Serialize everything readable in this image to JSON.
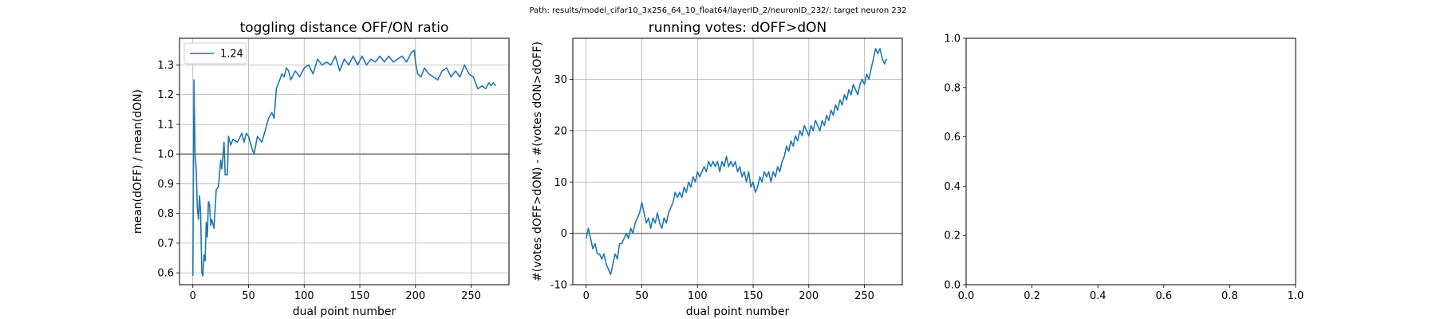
{
  "suptitle": "Path: results/model_cifar10_3x256_64_10_float64/layerID_2/neuronID_232/; target neuron 232",
  "chart_data": [
    {
      "type": "line",
      "title": "toggling distance OFF/ON ratio",
      "xlabel": "dual point number",
      "ylabel": "mean(dOFF) / mean(dON)",
      "xlim": [
        -12,
        284
      ],
      "ylim": [
        0.56,
        1.39
      ],
      "xticks": [
        0,
        50,
        100,
        150,
        200,
        250
      ],
      "yticks": [
        0.6,
        0.7,
        0.8,
        0.9,
        1.0,
        1.1,
        1.2,
        1.3
      ],
      "grid": true,
      "hline": 1.0,
      "legend": {
        "loc": "upper left",
        "entries": [
          "1.24"
        ]
      },
      "series": [
        {
          "name": "1.24",
          "keypoints": [
            [
              0,
              0.59
            ],
            [
              1,
              1.25
            ],
            [
              2,
              1.0
            ],
            [
              3,
              0.95
            ],
            [
              4,
              0.82
            ],
            [
              5,
              0.78
            ],
            [
              6,
              0.86
            ],
            [
              7,
              0.8
            ],
            [
              8,
              0.6
            ],
            [
              9,
              0.59
            ],
            [
              10,
              0.66
            ],
            [
              11,
              0.64
            ],
            [
              12,
              0.77
            ],
            [
              13,
              0.72
            ],
            [
              14,
              0.84
            ],
            [
              15,
              0.83
            ],
            [
              16,
              0.76
            ],
            [
              17,
              0.78
            ],
            [
              19,
              0.75
            ],
            [
              21,
              0.88
            ],
            [
              23,
              0.89
            ],
            [
              25,
              0.98
            ],
            [
              26,
              0.95
            ],
            [
              27,
              0.99
            ],
            [
              28,
              1.04
            ],
            [
              29,
              0.93
            ],
            [
              31,
              0.93
            ],
            [
              32,
              1.06
            ],
            [
              34,
              1.03
            ],
            [
              36,
              1.05
            ],
            [
              40,
              1.04
            ],
            [
              44,
              1.07
            ],
            [
              46,
              1.04
            ],
            [
              48,
              1.07
            ],
            [
              50,
              1.06
            ],
            [
              53,
              1.02
            ],
            [
              55,
              1.0
            ],
            [
              58,
              1.06
            ],
            [
              62,
              1.04
            ],
            [
              65,
              1.08
            ],
            [
              68,
              1.12
            ],
            [
              71,
              1.14
            ],
            [
              73,
              1.12
            ],
            [
              75,
              1.22
            ],
            [
              78,
              1.25
            ],
            [
              80,
              1.27
            ],
            [
              82,
              1.26
            ],
            [
              84,
              1.29
            ],
            [
              86,
              1.28
            ],
            [
              88,
              1.25
            ],
            [
              92,
              1.28
            ],
            [
              96,
              1.26
            ],
            [
              100,
              1.29
            ],
            [
              104,
              1.3
            ],
            [
              108,
              1.27
            ],
            [
              112,
              1.32
            ],
            [
              116,
              1.3
            ],
            [
              120,
              1.31
            ],
            [
              124,
              1.3
            ],
            [
              128,
              1.33
            ],
            [
              132,
              1.28
            ],
            [
              136,
              1.32
            ],
            [
              140,
              1.3
            ],
            [
              144,
              1.33
            ],
            [
              148,
              1.3
            ],
            [
              152,
              1.33
            ],
            [
              156,
              1.3
            ],
            [
              160,
              1.32
            ],
            [
              164,
              1.31
            ],
            [
              168,
              1.33
            ],
            [
              172,
              1.31
            ],
            [
              176,
              1.33
            ],
            [
              180,
              1.31
            ],
            [
              184,
              1.32
            ],
            [
              188,
              1.33
            ],
            [
              192,
              1.31
            ],
            [
              196,
              1.34
            ],
            [
              199,
              1.35
            ],
            [
              200,
              1.31
            ],
            [
              202,
              1.27
            ],
            [
              205,
              1.26
            ],
            [
              208,
              1.29
            ],
            [
              212,
              1.27
            ],
            [
              216,
              1.26
            ],
            [
              220,
              1.25
            ],
            [
              224,
              1.28
            ],
            [
              228,
              1.29
            ],
            [
              232,
              1.26
            ],
            [
              236,
              1.28
            ],
            [
              240,
              1.26
            ],
            [
              244,
              1.3
            ],
            [
              248,
              1.27
            ],
            [
              252,
              1.26
            ],
            [
              256,
              1.22
            ],
            [
              260,
              1.23
            ],
            [
              263,
              1.22
            ],
            [
              266,
              1.24
            ],
            [
              268,
              1.23
            ],
            [
              270,
              1.24
            ],
            [
              272,
              1.23
            ]
          ]
        }
      ]
    },
    {
      "type": "line",
      "title": "running votes: dOFF>dON",
      "xlabel": "dual point number",
      "ylabel": "#(votes dOFF>dON) - #(votes dON>dOFF)",
      "xlim": [
        -12,
        284
      ],
      "ylim": [
        -10,
        38
      ],
      "xticks": [
        0,
        50,
        100,
        150,
        200,
        250
      ],
      "yticks": [
        -10,
        0,
        10,
        20,
        30
      ],
      "grid": true,
      "hline": 0,
      "series": [
        {
          "name": "votes",
          "keypoints": [
            [
              0,
              -1
            ],
            [
              2,
              1
            ],
            [
              4,
              -1
            ],
            [
              6,
              -3
            ],
            [
              8,
              -2
            ],
            [
              10,
              -4
            ],
            [
              12,
              -4
            ],
            [
              14,
              -5
            ],
            [
              16,
              -4
            ],
            [
              18,
              -6
            ],
            [
              20,
              -7
            ],
            [
              22,
              -8
            ],
            [
              24,
              -6
            ],
            [
              26,
              -4
            ],
            [
              28,
              -5
            ],
            [
              30,
              -2
            ],
            [
              32,
              -2
            ],
            [
              34,
              -1
            ],
            [
              36,
              0
            ],
            [
              38,
              -1
            ],
            [
              40,
              1
            ],
            [
              42,
              0
            ],
            [
              44,
              2
            ],
            [
              46,
              3
            ],
            [
              48,
              4
            ],
            [
              50,
              6
            ],
            [
              52,
              4
            ],
            [
              54,
              2
            ],
            [
              56,
              3
            ],
            [
              58,
              1
            ],
            [
              60,
              3
            ],
            [
              62,
              2
            ],
            [
              64,
              4
            ],
            [
              66,
              2
            ],
            [
              68,
              1
            ],
            [
              70,
              3
            ],
            [
              72,
              2
            ],
            [
              74,
              4
            ],
            [
              76,
              5
            ],
            [
              78,
              6
            ],
            [
              80,
              8
            ],
            [
              82,
              7
            ],
            [
              84,
              8
            ],
            [
              86,
              7
            ],
            [
              88,
              9
            ],
            [
              90,
              8
            ],
            [
              92,
              10
            ],
            [
              94,
              9
            ],
            [
              96,
              11
            ],
            [
              98,
              10
            ],
            [
              100,
              12
            ],
            [
              102,
              11
            ],
            [
              104,
              12
            ],
            [
              106,
              13
            ],
            [
              108,
              12
            ],
            [
              110,
              14
            ],
            [
              112,
              13
            ],
            [
              114,
              14
            ],
            [
              116,
              13
            ],
            [
              118,
              14
            ],
            [
              120,
              12
            ],
            [
              122,
              14
            ],
            [
              124,
              13
            ],
            [
              126,
              15
            ],
            [
              128,
              13
            ],
            [
              130,
              14
            ],
            [
              132,
              13
            ],
            [
              134,
              14
            ],
            [
              136,
              12
            ],
            [
              138,
              13
            ],
            [
              140,
              11
            ],
            [
              142,
              12
            ],
            [
              144,
              10
            ],
            [
              146,
              12
            ],
            [
              148,
              9
            ],
            [
              150,
              10
            ],
            [
              152,
              8
            ],
            [
              154,
              9
            ],
            [
              156,
              11
            ],
            [
              158,
              10
            ],
            [
              160,
              12
            ],
            [
              162,
              11
            ],
            [
              164,
              12
            ],
            [
              166,
              10
            ],
            [
              168,
              12
            ],
            [
              170,
              11
            ],
            [
              172,
              13
            ],
            [
              174,
              12
            ],
            [
              176,
              14
            ],
            [
              178,
              15
            ],
            [
              180,
              17
            ],
            [
              182,
              16
            ],
            [
              184,
              18
            ],
            [
              186,
              17
            ],
            [
              188,
              19
            ],
            [
              190,
              18
            ],
            [
              192,
              20
            ],
            [
              194,
              19
            ],
            [
              196,
              21
            ],
            [
              198,
              20
            ],
            [
              200,
              19
            ],
            [
              202,
              21
            ],
            [
              204,
              20
            ],
            [
              206,
              22
            ],
            [
              208,
              21
            ],
            [
              210,
              20
            ],
            [
              212,
              22
            ],
            [
              214,
              21
            ],
            [
              216,
              23
            ],
            [
              218,
              22
            ],
            [
              220,
              24
            ],
            [
              222,
              23
            ],
            [
              224,
              25
            ],
            [
              226,
              24
            ],
            [
              228,
              26
            ],
            [
              230,
              25
            ],
            [
              232,
              27
            ],
            [
              234,
              26
            ],
            [
              236,
              28
            ],
            [
              238,
              27
            ],
            [
              240,
              29
            ],
            [
              242,
              28
            ],
            [
              244,
              27
            ],
            [
              246,
              29
            ],
            [
              248,
              30
            ],
            [
              250,
              29
            ],
            [
              252,
              31
            ],
            [
              254,
              30
            ],
            [
              256,
              32
            ],
            [
              258,
              34
            ],
            [
              260,
              36
            ],
            [
              262,
              35
            ],
            [
              264,
              36
            ],
            [
              266,
              34
            ],
            [
              268,
              33
            ],
            [
              270,
              34
            ]
          ]
        }
      ]
    },
    {
      "type": "empty",
      "title": "",
      "xlim": [
        0,
        1
      ],
      "ylim": [
        0,
        1
      ],
      "xticks": [
        0.0,
        0.2,
        0.4,
        0.6,
        0.8,
        1.0
      ],
      "yticks": [
        0.0,
        0.2,
        0.4,
        0.6,
        0.8,
        1.0
      ],
      "xticklabels": [
        "0.0",
        "0.2",
        "0.4",
        "0.6",
        "0.8",
        "1.0"
      ],
      "yticklabels": [
        "0.0",
        "0.2",
        "0.4",
        "0.6",
        "0.8",
        "1.0"
      ],
      "grid": false
    }
  ]
}
